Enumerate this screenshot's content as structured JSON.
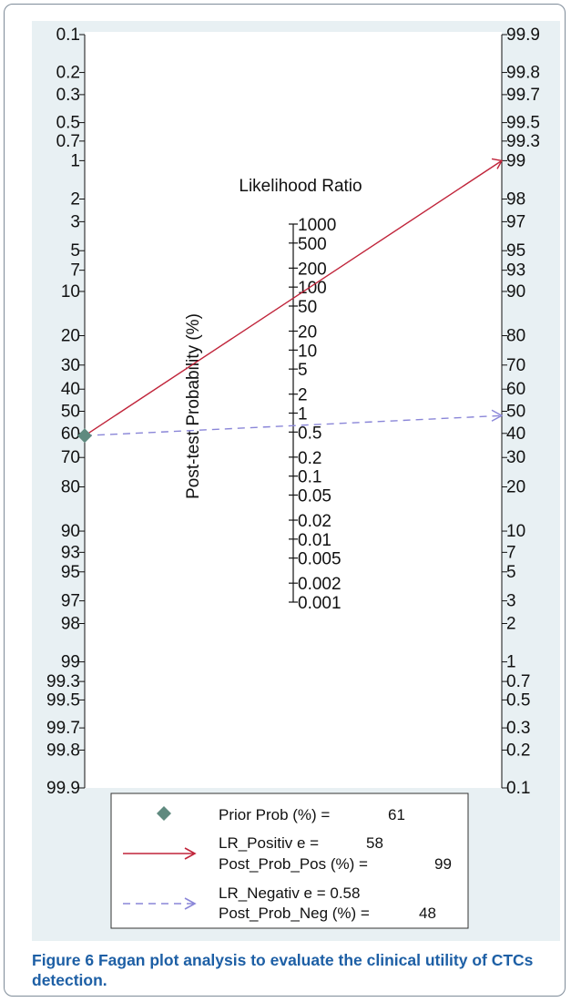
{
  "chart_data": {
    "type": "fagan_nomogram",
    "left_axis": {
      "title": "Post-test Probability (%)",
      "ticks": [
        "0.1",
        "0.2",
        "0.3",
        "0.5",
        "0.7",
        "1",
        "2",
        "3",
        "5",
        "7",
        "10",
        "20",
        "30",
        "40",
        "50",
        "60",
        "70",
        "80",
        "90",
        "93",
        "95",
        "97",
        "98",
        "99",
        "99.3",
        "99.5",
        "99.7",
        "99.8",
        "99.9"
      ]
    },
    "right_axis": {
      "ticks": [
        "99.9",
        "99.8",
        "99.7",
        "99.5",
        "99.3",
        "99",
        "98",
        "97",
        "95",
        "93",
        "90",
        "80",
        "70",
        "60",
        "50",
        "40",
        "30",
        "20",
        "10",
        "7",
        "5",
        "3",
        "2",
        "1",
        "0.7",
        "0.5",
        "0.3",
        "0.2",
        "0.1"
      ]
    },
    "lr_axis": {
      "title": "Likelihood Ratio",
      "ticks": [
        "1000",
        "500",
        "200",
        "100",
        "50",
        "20",
        "10",
        "5",
        "2",
        "1",
        "0.5",
        "0.2",
        "0.1",
        "0.05",
        "0.02",
        "0.01",
        "0.005",
        "0.002",
        "0.001"
      ]
    },
    "prior_prob": 61,
    "lr_positive": 58,
    "post_prob_pos": 99,
    "lr_negative": 0.58,
    "post_prob_neg": 48,
    "legend": {
      "prior_label": "Prior Prob (%) =",
      "prior_value": "61",
      "pos_line1": "LR_Positiv e =",
      "pos_value1": "58",
      "pos_line2": "Post_Prob_Pos (%) =",
      "pos_value2": "99",
      "neg_line1": "LR_Negativ e = 0.58",
      "neg_line2": "Post_Prob_Neg (%) =",
      "neg_value2": "48"
    },
    "colors": {
      "panel_bg": "#e8f0f3",
      "plot_bg": "#ffffff",
      "positive_line": "#c0243a",
      "negative_line": "#8a86d8",
      "prior_marker": "#5f8a7f"
    }
  },
  "caption": {
    "label": "Figure 6",
    "text": "Fagan plot analysis to evaluate the clinical utility of CTCs detection."
  }
}
